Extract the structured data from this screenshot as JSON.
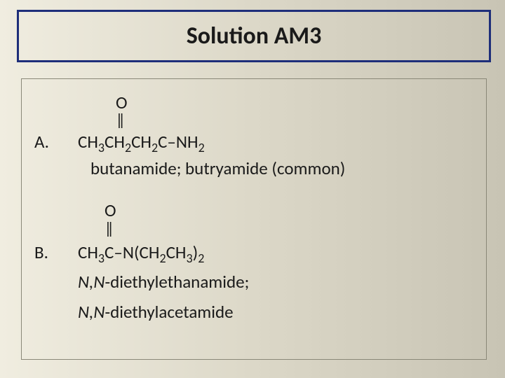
{
  "title": "Solution AM3",
  "colors": {
    "title_border": "#1e2e7a",
    "content_border": "#8a8878",
    "text": "#1a1a1a",
    "bg_gradient_left": "#f0ede0",
    "bg_gradient_mid": "#dcd8c8",
    "bg_gradient_right": "#c8c4b4"
  },
  "partA": {
    "label": "A.",
    "oxygen": "O",
    "double_bond": "‖",
    "formula_parts": {
      "p1": "CH",
      "s1": "3",
      "p2": "CH",
      "s2": "2",
      "p3": "CH",
      "s3": "2",
      "p4": "C–NH",
      "s4": "2"
    },
    "name": "butanamide; butryamide (common)"
  },
  "partB": {
    "label": "B.",
    "oxygen": "O",
    "double_bond": "‖",
    "formula_parts": {
      "p1": "CH",
      "s1": "3",
      "p2": "C–N(CH",
      "s2": "2",
      "p3": "CH",
      "s3": "3",
      "p4": ")",
      "s4": "2"
    },
    "name1_prefix": "N,N",
    "name1_rest": "-diethylethanamide;",
    "name2_prefix": "N,N",
    "name2_rest": "-diethylacetamide"
  }
}
